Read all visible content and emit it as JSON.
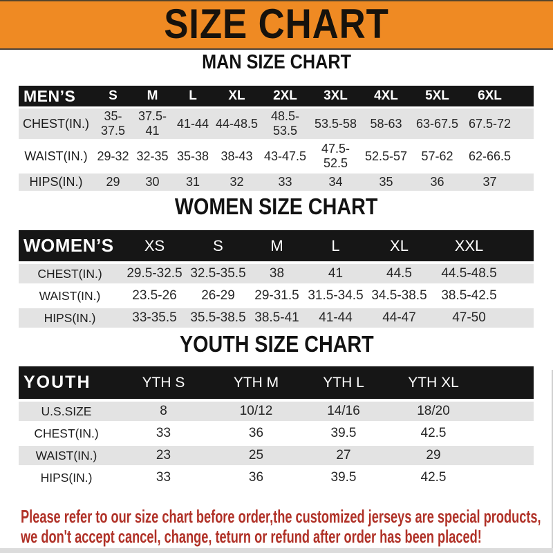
{
  "banner": {
    "title": "SIZE CHART",
    "bg_color": "#ef8a23",
    "text_color": "#17120c"
  },
  "sections": [
    {
      "id": "men",
      "heading": "MAN SIZE CHART",
      "corner_label": "MEN’S",
      "columns": [
        "S",
        "M",
        "L",
        "XL",
        "2XL",
        "3XL",
        "4XL",
        "5XL",
        "6XL"
      ],
      "rows": [
        {
          "label": "CHEST(IN.)",
          "values": [
            "35-37.5",
            "37.5-41",
            "41-44",
            "44-48.5",
            "48.5-53.5",
            "53.5-58",
            "58-63",
            "63-67.5",
            "67.5-72"
          ]
        },
        {
          "label": "WAIST(IN.)",
          "values": [
            "29-32",
            "32-35",
            "35-38",
            "38-43",
            "43-47.5",
            "47.5-52.5",
            "52.5-57",
            "57-62",
            "62-66.5"
          ]
        },
        {
          "label": "HIPS(IN.)",
          "values": [
            "29",
            "30",
            "31",
            "32",
            "33",
            "34",
            "35",
            "36",
            "37"
          ]
        }
      ]
    },
    {
      "id": "women",
      "heading": "WOMEN SIZE CHART",
      "corner_label": "WOMEN’S",
      "columns": [
        "XS",
        "S",
        "M",
        "L",
        "XL",
        "XXL"
      ],
      "rows": [
        {
          "label": "CHEST(IN.)",
          "values": [
            "29.5-32.5",
            "32.5-35.5",
            "38",
            "41",
            "44.5",
            "44.5-48.5"
          ]
        },
        {
          "label": "WAIST(IN.)",
          "values": [
            "23.5-26",
            "26-29",
            "29-31.5",
            "31.5-34.5",
            "34.5-38.5",
            "38.5-42.5"
          ]
        },
        {
          "label": "HIPS(IN.)",
          "values": [
            "33-35.5",
            "35.5-38.5",
            "38.5-41",
            "41-44",
            "44-47",
            "47-50"
          ]
        }
      ]
    },
    {
      "id": "youth",
      "heading": "YOUTH SIZE CHART",
      "corner_label": "YOUTH",
      "columns": [
        "YTH S",
        "YTH M",
        "YTH L",
        "YTH XL"
      ],
      "rows": [
        {
          "label": "U.S.SIZE",
          "values": [
            "8",
            "10/12",
            "14/16",
            "18/20"
          ]
        },
        {
          "label": "CHEST(IN.)",
          "values": [
            "33",
            "36",
            "39.5",
            "42.5"
          ]
        },
        {
          "label": "WAIST(IN.)",
          "values": [
            "23",
            "25",
            "27",
            "29"
          ]
        },
        {
          "label": "HIPS(IN.)",
          "values": [
            "33",
            "36",
            "39.5",
            "42.5"
          ]
        }
      ]
    }
  ],
  "footer": {
    "line1": "Please refer to our size chart before order,the customized jerseys are special products,",
    "line2": "we don't accept cancel, change, teturn or refund after order has been placed!",
    "text_color": "#b03127"
  }
}
